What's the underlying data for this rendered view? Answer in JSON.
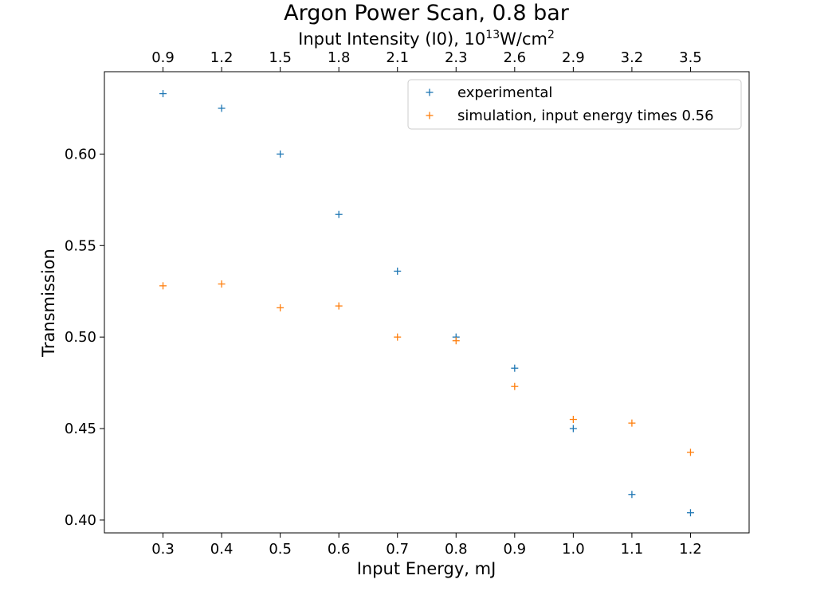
{
  "chart_data": {
    "type": "scatter",
    "title": "Argon Power Scan, 0.8 bar",
    "xlabel": "Input Energy, mJ",
    "ylabel": "Transmission",
    "top_xlabel": {
      "prefix": "Input Intensity (I0), 10",
      "sup1": "13",
      "mid": "W/cm",
      "sup2": "2"
    },
    "xlim": [
      0.2,
      1.3
    ],
    "ylim": [
      0.393,
      0.645
    ],
    "x_ticks": [
      0.3,
      0.4,
      0.5,
      0.6,
      0.7,
      0.8,
      0.9,
      1.0,
      1.1,
      1.2
    ],
    "x_tick_labels": [
      "0.3",
      "0.4",
      "0.5",
      "0.6",
      "0.7",
      "0.8",
      "0.9",
      "1.0",
      "1.1",
      "1.2"
    ],
    "y_ticks": [
      0.4,
      0.45,
      0.5,
      0.55,
      0.6
    ],
    "y_tick_labels": [
      "0.40",
      "0.45",
      "0.50",
      "0.55",
      "0.60"
    ],
    "top_x_ticks": [
      0.3,
      0.4,
      0.5,
      0.6,
      0.7,
      0.8,
      0.9,
      1.0,
      1.1,
      1.2
    ],
    "top_x_tick_labels": [
      "0.9",
      "1.2",
      "1.5",
      "1.8",
      "2.1",
      "2.3",
      "2.6",
      "2.9",
      "3.2",
      "3.5"
    ],
    "grid": false,
    "legend_position": "top-right",
    "x": [
      0.3,
      0.4,
      0.5,
      0.6,
      0.7,
      0.8,
      0.9,
      1.0,
      1.1,
      1.2
    ],
    "series": [
      {
        "name": "experimental",
        "color": "#1f77b4",
        "marker": "plus",
        "values": [
          0.633,
          0.625,
          0.6,
          0.567,
          0.536,
          0.5,
          0.483,
          0.45,
          0.414,
          0.404
        ]
      },
      {
        "name": "simulation, input energy times 0.56",
        "color": "#ff7f0e",
        "marker": "plus",
        "values": [
          0.528,
          0.529,
          0.516,
          0.517,
          0.5,
          0.498,
          0.473,
          0.455,
          0.453,
          0.437
        ]
      }
    ]
  }
}
